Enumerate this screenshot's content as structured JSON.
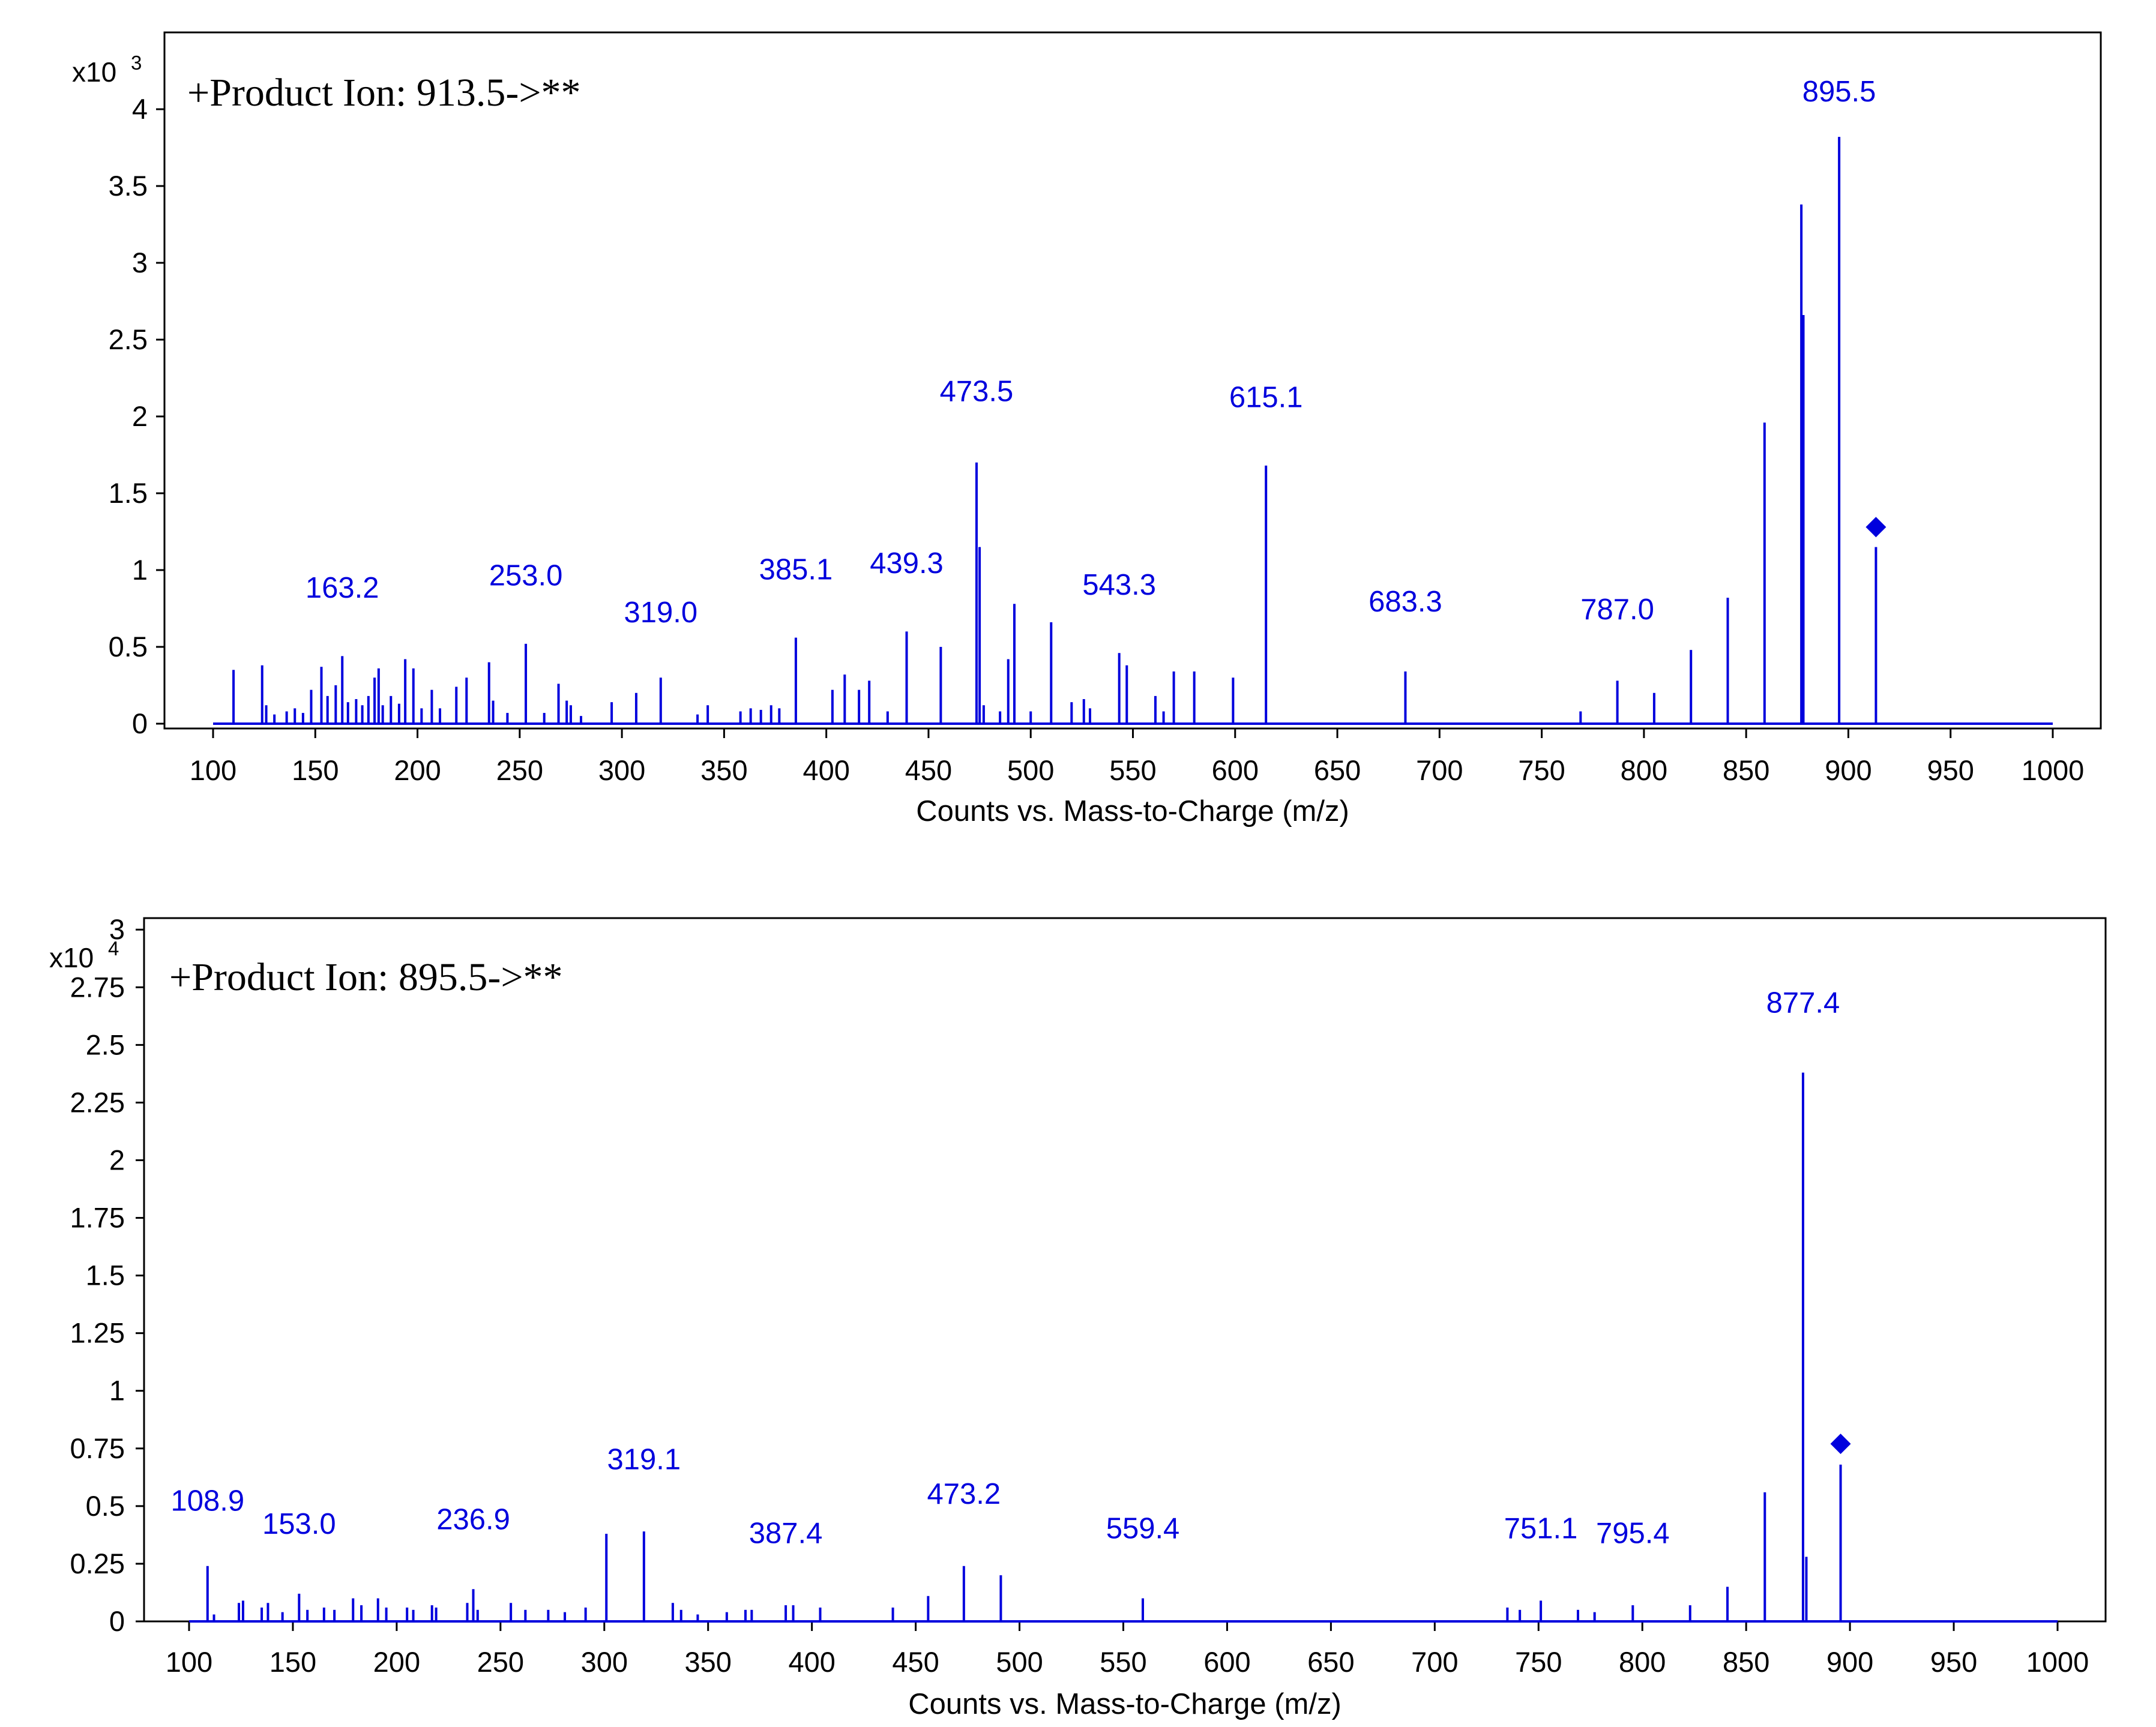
{
  "colors": {
    "series": "#0000dd",
    "axis": "#000000",
    "background": "#ffffff"
  },
  "chart_data": [
    {
      "type": "bar",
      "panel": "a",
      "title": "+Product  Ion: 913.5->**",
      "xlabel": "Counts vs. Mass-to-Charge (m/z)",
      "ylabel": "",
      "y_multiplier": "x10",
      "y_multiplier_exp": "3",
      "xlim": [
        100,
        1000
      ],
      "ylim": [
        0,
        4.5
      ],
      "x_ticks": [
        100,
        150,
        200,
        250,
        300,
        350,
        400,
        450,
        500,
        550,
        600,
        650,
        700,
        750,
        800,
        850,
        900,
        950,
        1000
      ],
      "y_ticks": [
        0,
        0.5,
        1,
        1.5,
        2,
        2.5,
        3,
        3.5,
        4
      ],
      "y_tick_labels": [
        "0",
        "0.5",
        "1",
        "1.5",
        "2",
        "2.5",
        "3",
        "3.5",
        "4"
      ],
      "precursor": {
        "mz": 913.5,
        "y": 1.28
      },
      "peaks": [
        {
          "mz": 110,
          "i": 0.35
        },
        {
          "mz": 124,
          "i": 0.38
        },
        {
          "mz": 126,
          "i": 0.12
        },
        {
          "mz": 130,
          "i": 0.06
        },
        {
          "mz": 136,
          "i": 0.08
        },
        {
          "mz": 140,
          "i": 0.1
        },
        {
          "mz": 144,
          "i": 0.07
        },
        {
          "mz": 148,
          "i": 0.22
        },
        {
          "mz": 153,
          "i": 0.37
        },
        {
          "mz": 156,
          "i": 0.18
        },
        {
          "mz": 160,
          "i": 0.25
        },
        {
          "mz": 163.2,
          "i": 0.44
        },
        {
          "mz": 166,
          "i": 0.14
        },
        {
          "mz": 170,
          "i": 0.16
        },
        {
          "mz": 173,
          "i": 0.12
        },
        {
          "mz": 176,
          "i": 0.18
        },
        {
          "mz": 179,
          "i": 0.3
        },
        {
          "mz": 181,
          "i": 0.36
        },
        {
          "mz": 183,
          "i": 0.12
        },
        {
          "mz": 187,
          "i": 0.18
        },
        {
          "mz": 191,
          "i": 0.13
        },
        {
          "mz": 194,
          "i": 0.42
        },
        {
          "mz": 198,
          "i": 0.36
        },
        {
          "mz": 202,
          "i": 0.1
        },
        {
          "mz": 207,
          "i": 0.22
        },
        {
          "mz": 211,
          "i": 0.1
        },
        {
          "mz": 219,
          "i": 0.24
        },
        {
          "mz": 224,
          "i": 0.3
        },
        {
          "mz": 235,
          "i": 0.4
        },
        {
          "mz": 237,
          "i": 0.15
        },
        {
          "mz": 244,
          "i": 0.07
        },
        {
          "mz": 253,
          "i": 0.52
        },
        {
          "mz": 262,
          "i": 0.07
        },
        {
          "mz": 269,
          "i": 0.26
        },
        {
          "mz": 273,
          "i": 0.15
        },
        {
          "mz": 275,
          "i": 0.12
        },
        {
          "mz": 280,
          "i": 0.05
        },
        {
          "mz": 295,
          "i": 0.14
        },
        {
          "mz": 307,
          "i": 0.2
        },
        {
          "mz": 319,
          "i": 0.3
        },
        {
          "mz": 337,
          "i": 0.06
        },
        {
          "mz": 342,
          "i": 0.12
        },
        {
          "mz": 358,
          "i": 0.08
        },
        {
          "mz": 363,
          "i": 0.1
        },
        {
          "mz": 368,
          "i": 0.09
        },
        {
          "mz": 373,
          "i": 0.12
        },
        {
          "mz": 377,
          "i": 0.1
        },
        {
          "mz": 385.1,
          "i": 0.56
        },
        {
          "mz": 403,
          "i": 0.22
        },
        {
          "mz": 409,
          "i": 0.32
        },
        {
          "mz": 416,
          "i": 0.22
        },
        {
          "mz": 421,
          "i": 0.28
        },
        {
          "mz": 430,
          "i": 0.08
        },
        {
          "mz": 439.3,
          "i": 0.6
        },
        {
          "mz": 456,
          "i": 0.5
        },
        {
          "mz": 473.5,
          "i": 1.7
        },
        {
          "mz": 475,
          "i": 1.15
        },
        {
          "mz": 477,
          "i": 0.12
        },
        {
          "mz": 485,
          "i": 0.08
        },
        {
          "mz": 489,
          "i": 0.42
        },
        {
          "mz": 492,
          "i": 0.78
        },
        {
          "mz": 500,
          "i": 0.08
        },
        {
          "mz": 510,
          "i": 0.66
        },
        {
          "mz": 520,
          "i": 0.14
        },
        {
          "mz": 526,
          "i": 0.16
        },
        {
          "mz": 529,
          "i": 0.1
        },
        {
          "mz": 543.3,
          "i": 0.46
        },
        {
          "mz": 547,
          "i": 0.38
        },
        {
          "mz": 561,
          "i": 0.18
        },
        {
          "mz": 565,
          "i": 0.08
        },
        {
          "mz": 570,
          "i": 0.34
        },
        {
          "mz": 580,
          "i": 0.34
        },
        {
          "mz": 599,
          "i": 0.3
        },
        {
          "mz": 615.1,
          "i": 1.68
        },
        {
          "mz": 683.3,
          "i": 0.34
        },
        {
          "mz": 769,
          "i": 0.08
        },
        {
          "mz": 787.0,
          "i": 0.28
        },
        {
          "mz": 805,
          "i": 0.2
        },
        {
          "mz": 823,
          "i": 0.48
        },
        {
          "mz": 841,
          "i": 0.82
        },
        {
          "mz": 859,
          "i": 1.96
        },
        {
          "mz": 877,
          "i": 3.38
        },
        {
          "mz": 878,
          "i": 2.66
        },
        {
          "mz": 895.5,
          "i": 3.82
        },
        {
          "mz": 913.5,
          "i": 1.15
        }
      ],
      "peak_labels": [
        {
          "text": "163.2",
          "mz": 163.2,
          "y": 0.82
        },
        {
          "text": "253.0",
          "mz": 253.0,
          "y": 0.9
        },
        {
          "text": "319.0",
          "mz": 319.0,
          "y": 0.66
        },
        {
          "text": "385.1",
          "mz": 385.1,
          "y": 0.94
        },
        {
          "text": "439.3",
          "mz": 439.3,
          "y": 0.98
        },
        {
          "text": "473.5",
          "mz": 473.5,
          "y": 2.1
        },
        {
          "text": "543.3",
          "mz": 543.3,
          "y": 0.84
        },
        {
          "text": "615.1",
          "mz": 615.1,
          "y": 2.06
        },
        {
          "text": "683.3",
          "mz": 683.3,
          "y": 0.73
        },
        {
          "text": "787.0",
          "mz": 787.0,
          "y": 0.68
        },
        {
          "text": "895.5",
          "mz": 895.5,
          "y": 4.05
        }
      ]
    },
    {
      "type": "bar",
      "panel": "b",
      "title": "+Product  Ion: 895.5->**",
      "xlabel": "Counts vs. Mass-to-Charge (m/z)",
      "ylabel": "",
      "y_multiplier": "x10",
      "y_multiplier_exp": "4",
      "xlim": [
        100,
        1000
      ],
      "ylim": [
        0,
        3.05
      ],
      "x_ticks": [
        100,
        150,
        200,
        250,
        300,
        350,
        400,
        450,
        500,
        550,
        600,
        650,
        700,
        750,
        800,
        850,
        900,
        950,
        1000
      ],
      "y_ticks": [
        0,
        0.25,
        0.5,
        0.75,
        1,
        1.25,
        1.5,
        1.75,
        2,
        2.25,
        2.5,
        2.75,
        3
      ],
      "y_tick_labels": [
        "0",
        "0.25",
        "0.5",
        "0.75",
        "1",
        "1.25",
        "1.5",
        "1.75",
        "2",
        "2.25",
        "2.5",
        "2.75",
        "3"
      ],
      "precursor": {
        "mz": 895.5,
        "y": 0.77
      },
      "peaks": [
        {
          "mz": 108.9,
          "i": 0.24
        },
        {
          "mz": 112,
          "i": 0.03
        },
        {
          "mz": 124,
          "i": 0.08
        },
        {
          "mz": 126,
          "i": 0.09
        },
        {
          "mz": 135,
          "i": 0.06
        },
        {
          "mz": 138,
          "i": 0.08
        },
        {
          "mz": 145,
          "i": 0.04
        },
        {
          "mz": 153.0,
          "i": 0.12
        },
        {
          "mz": 157,
          "i": 0.05
        },
        {
          "mz": 165,
          "i": 0.06
        },
        {
          "mz": 170,
          "i": 0.05
        },
        {
          "mz": 179,
          "i": 0.1
        },
        {
          "mz": 183,
          "i": 0.07
        },
        {
          "mz": 191,
          "i": 0.1
        },
        {
          "mz": 195,
          "i": 0.06
        },
        {
          "mz": 205,
          "i": 0.06
        },
        {
          "mz": 208,
          "i": 0.05
        },
        {
          "mz": 217,
          "i": 0.07
        },
        {
          "mz": 219,
          "i": 0.06
        },
        {
          "mz": 234,
          "i": 0.08
        },
        {
          "mz": 236.9,
          "i": 0.14
        },
        {
          "mz": 239,
          "i": 0.05
        },
        {
          "mz": 255,
          "i": 0.08
        },
        {
          "mz": 262,
          "i": 0.05
        },
        {
          "mz": 273,
          "i": 0.05
        },
        {
          "mz": 281,
          "i": 0.04
        },
        {
          "mz": 291,
          "i": 0.06
        },
        {
          "mz": 301,
          "i": 0.38
        },
        {
          "mz": 319.1,
          "i": 0.39
        },
        {
          "mz": 333,
          "i": 0.08
        },
        {
          "mz": 337,
          "i": 0.05
        },
        {
          "mz": 345,
          "i": 0.03
        },
        {
          "mz": 359,
          "i": 0.04
        },
        {
          "mz": 368,
          "i": 0.05
        },
        {
          "mz": 371,
          "i": 0.05
        },
        {
          "mz": 387.4,
          "i": 0.07
        },
        {
          "mz": 391,
          "i": 0.07
        },
        {
          "mz": 404,
          "i": 0.06
        },
        {
          "mz": 439,
          "i": 0.06
        },
        {
          "mz": 456,
          "i": 0.11
        },
        {
          "mz": 473.2,
          "i": 0.24
        },
        {
          "mz": 491,
          "i": 0.2
        },
        {
          "mz": 559.4,
          "i": 0.1
        },
        {
          "mz": 735,
          "i": 0.06
        },
        {
          "mz": 741,
          "i": 0.05
        },
        {
          "mz": 751.1,
          "i": 0.09
        },
        {
          "mz": 769,
          "i": 0.05
        },
        {
          "mz": 777,
          "i": 0.04
        },
        {
          "mz": 795.4,
          "i": 0.07
        },
        {
          "mz": 823,
          "i": 0.07
        },
        {
          "mz": 841,
          "i": 0.15
        },
        {
          "mz": 859,
          "i": 0.56
        },
        {
          "mz": 877.4,
          "i": 2.38
        },
        {
          "mz": 879,
          "i": 0.28
        },
        {
          "mz": 895.5,
          "i": 0.68
        }
      ],
      "peak_labels": [
        {
          "text": "108.9",
          "mz": 108.9,
          "y": 0.48
        },
        {
          "text": "153.0",
          "mz": 153.0,
          "y": 0.38
        },
        {
          "text": "236.9",
          "mz": 236.9,
          "y": 0.4
        },
        {
          "text": "319.1",
          "mz": 319.1,
          "y": 0.66
        },
        {
          "text": "387.4",
          "mz": 387.4,
          "y": 0.34
        },
        {
          "text": "473.2",
          "mz": 473.2,
          "y": 0.51
        },
        {
          "text": "559.4",
          "mz": 559.4,
          "y": 0.36
        },
        {
          "text": "751.1",
          "mz": 751.1,
          "y": 0.36
        },
        {
          "text": "795.4",
          "mz": 795.4,
          "y": 0.34
        },
        {
          "text": "877.4",
          "mz": 877.4,
          "y": 2.64
        }
      ]
    }
  ]
}
